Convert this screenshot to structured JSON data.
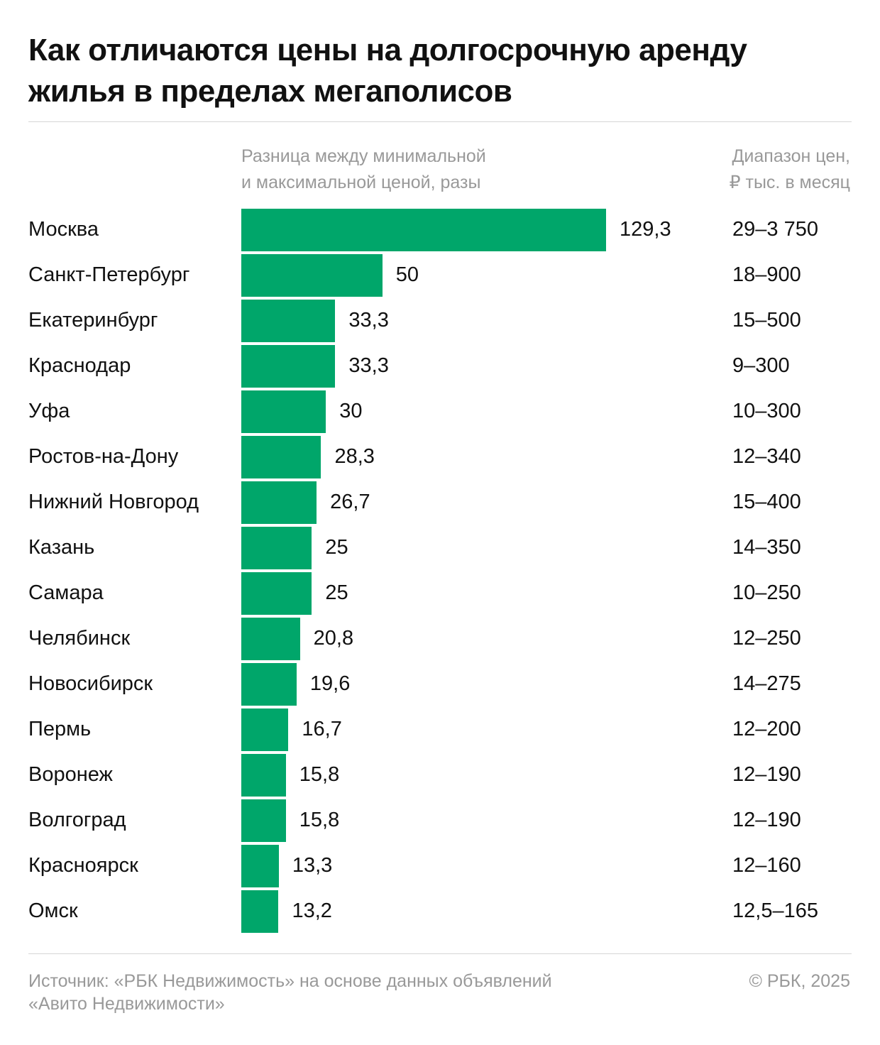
{
  "title": "Как отличаются цены на долгосрочную аренду жилья в пределах мегаполисов",
  "column_headers": {
    "bars": [
      "Разница между минимальной",
      "и максимальной ценой, разы"
    ],
    "range": [
      "Диапазон цен,",
      "₽ тыс. в месяц"
    ]
  },
  "chart_data": {
    "type": "bar",
    "orientation": "horizontal",
    "xlabel": "Разница между минимальной и максимальной ценой, разы",
    "bar_color": "#00a66a",
    "categories": [
      "Москва",
      "Санкт-Петербург",
      "Екатеринбург",
      "Краснодар",
      "Уфа",
      "Ростов-на-Дону",
      "Нижний Новгород",
      "Казань",
      "Самара",
      "Челябинск",
      "Новосибирск",
      "Пермь",
      "Воронеж",
      "Волгоград",
      "Красноярск",
      "Омск"
    ],
    "values": [
      129.3,
      50,
      33.3,
      33.3,
      30,
      28.3,
      26.7,
      25,
      25,
      20.8,
      19.6,
      16.7,
      15.8,
      15.8,
      13.3,
      13.2
    ],
    "value_labels": [
      "129,3",
      "50",
      "33,3",
      "33,3",
      "30",
      "28,3",
      "26,7",
      "25",
      "25",
      "20,8",
      "19,6",
      "16,7",
      "15,8",
      "15,8",
      "13,3",
      "13,2"
    ],
    "price_ranges": [
      "29–3 750",
      "18–900",
      "15–500",
      "9–300",
      "10–300",
      "12–340",
      "15–400",
      "14–350",
      "10–250",
      "12–250",
      "14–275",
      "12–200",
      "12–190",
      "12–190",
      "12–160",
      "12,5–165"
    ]
  },
  "footer": {
    "source": [
      "Источник: «РБК Недвижимость» на основе данных объявлений",
      "«Авито Недвижимости»"
    ],
    "copyright": "© РБК, 2025"
  }
}
